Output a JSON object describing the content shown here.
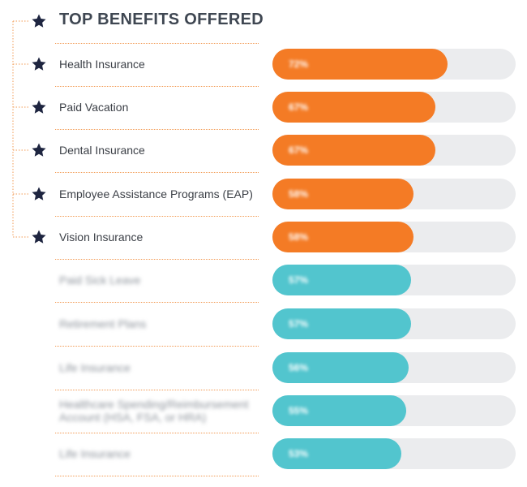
{
  "chart_data": {
    "type": "bar",
    "orientation": "horizontal",
    "title": "TOP BENEFITS OFFERED",
    "xlim": [
      0,
      100
    ],
    "colors": {
      "highlight": "#f47b25",
      "other": "#52c5ce",
      "track": "#ebecee",
      "star": "#1e2540"
    },
    "rows": [
      {
        "label": "Health Insurance",
        "value": 72,
        "value_label": "72%",
        "highlight": true
      },
      {
        "label": "Paid Vacation",
        "value": 67,
        "value_label": "67%",
        "highlight": true
      },
      {
        "label": "Dental Insurance",
        "value": 67,
        "value_label": "67%",
        "highlight": true
      },
      {
        "label": "Employee Assistance Programs (EAP)",
        "value": 58,
        "value_label": "58%",
        "highlight": true
      },
      {
        "label": "Vision Insurance",
        "value": 58,
        "value_label": "58%",
        "highlight": true
      },
      {
        "label": "Paid Sick Leave",
        "value": 57,
        "value_label": "57%",
        "highlight": false
      },
      {
        "label": "Retirement Plans",
        "value": 57,
        "value_label": "57%",
        "highlight": false
      },
      {
        "label": "Life Insurance",
        "value": 56,
        "value_label": "56%",
        "highlight": false
      },
      {
        "label": "Healthcare Spending/Reimbursement Account (HSA, FSA, or HRA)",
        "value": 55,
        "value_label": "55%",
        "highlight": false
      },
      {
        "label": "Life Insurance",
        "value": 53,
        "value_label": "53%",
        "highlight": false
      }
    ]
  }
}
